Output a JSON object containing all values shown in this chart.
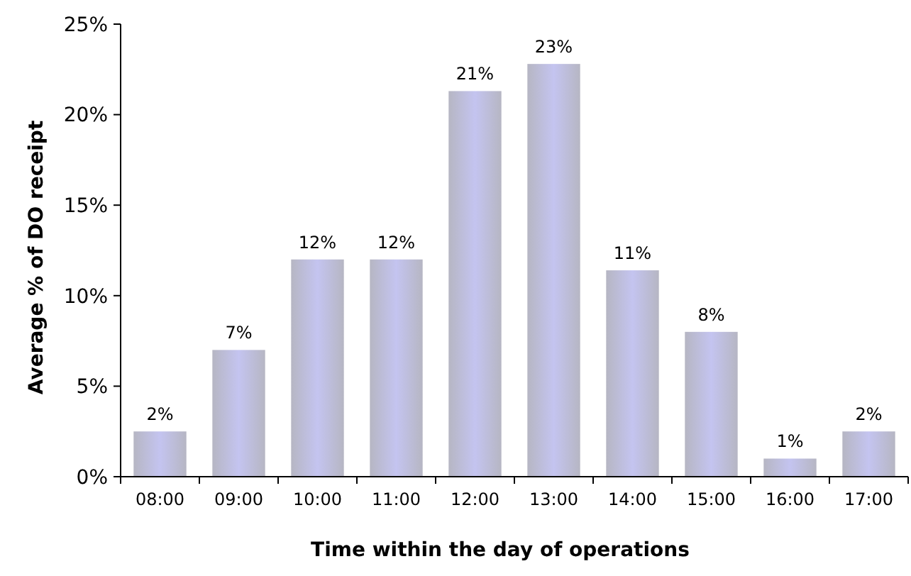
{
  "chart_data": {
    "type": "bar",
    "xlabel": "Time within the day of operations",
    "ylabel": "Average % of DO receipt",
    "categories": [
      "08:00",
      "09:00",
      "10:00",
      "11:00",
      "12:00",
      "13:00",
      "14:00",
      "15:00",
      "16:00",
      "17:00"
    ],
    "values": [
      2.5,
      7,
      12,
      12,
      21.3,
      22.8,
      11.4,
      8,
      1,
      2.5
    ],
    "value_labels": [
      "2%",
      "7%",
      "12%",
      "12%",
      "21%",
      "23%",
      "11%",
      "8%",
      "1%",
      "2%"
    ],
    "color": "#c4c4f0",
    "ylim": [
      0,
      25
    ],
    "yticks": [
      {
        "value": 0,
        "label": "0%"
      },
      {
        "value": 5,
        "label": "5%"
      },
      {
        "value": 10,
        "label": "10%"
      },
      {
        "value": 15,
        "label": "15%"
      },
      {
        "value": 20,
        "label": "20%"
      },
      {
        "value": 25,
        "label": "25%"
      }
    ],
    "grid": false
  }
}
